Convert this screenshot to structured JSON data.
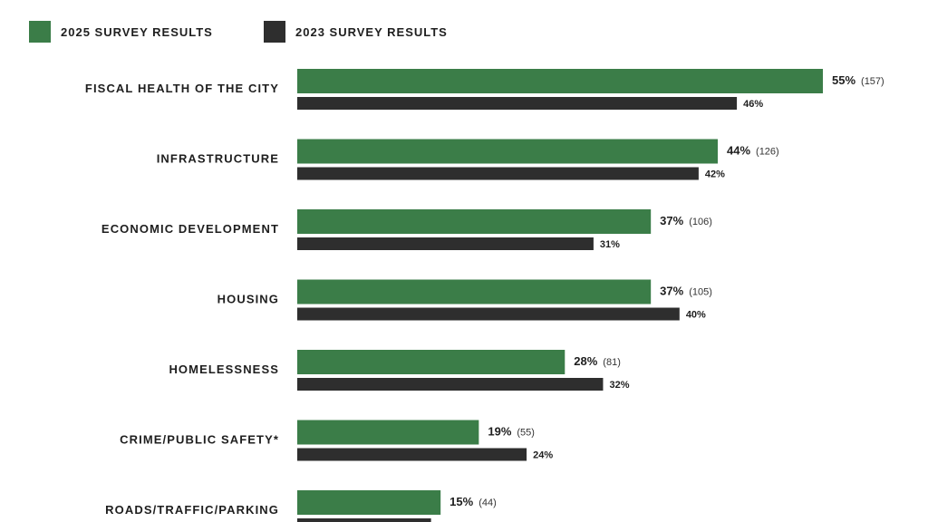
{
  "colors": {
    "current": "#3b7d48",
    "previous": "#2e2e2e",
    "text": "#1e1e1e"
  },
  "legend": {
    "current_label": "2025 SURVEY RESULTS",
    "previous_label": "2023 SURVEY RESULTS"
  },
  "chart_data": {
    "type": "bar",
    "orientation": "horizontal",
    "title": "",
    "categories": [
      "FISCAL HEALTH OF THE CITY",
      "INFRASTRUCTURE",
      "ECONOMIC DEVELOPMENT",
      "HOUSING",
      "HOMELESSNESS",
      "CRIME/PUBLIC SAFETY*",
      "ROADS/TRAFFIC/PARKING"
    ],
    "series": [
      {
        "name": "2025 SURVEY RESULTS",
        "values": [
          55,
          44,
          37,
          37,
          28,
          19,
          15
        ],
        "value_labels": [
          "55%",
          "44%",
          "37%",
          "37%",
          "28%",
          "19%",
          "15%"
        ],
        "counts": [
          "(157)",
          "(126)",
          "(106)",
          "(105)",
          "(81)",
          "(55)",
          "(44)"
        ]
      },
      {
        "name": "2023 SURVEY RESULTS",
        "values": [
          46,
          42,
          31,
          40,
          32,
          24,
          14
        ],
        "value_labels": [
          "46%",
          "42%",
          "31%",
          "40%",
          "32%",
          "24%",
          ""
        ]
      }
    ],
    "xlim": [
      0,
      100
    ],
    "grid": false,
    "legend_position": "top-left"
  }
}
